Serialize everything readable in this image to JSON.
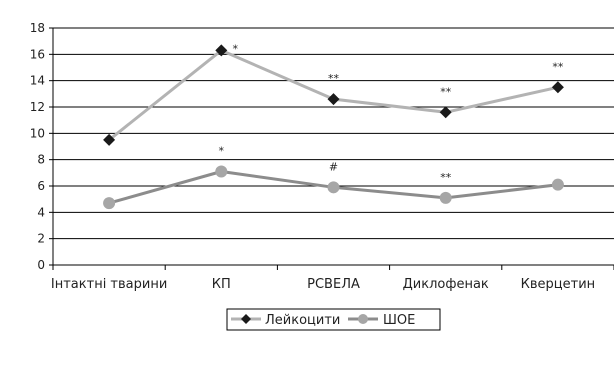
{
  "chart_data": {
    "type": "line",
    "categories": [
      "Інтактні тварини",
      "КП",
      "PCBEЛА",
      "Диклофенак",
      "Кверцетин"
    ],
    "ylim": [
      0,
      18
    ],
    "yticks": [
      0,
      2,
      4,
      6,
      8,
      10,
      12,
      14,
      16,
      18
    ],
    "grid": true,
    "legend_position": "bottom-center",
    "series": [
      {
        "name": "Лейкоцити",
        "marker": "diamond",
        "color": "#b3b3b3",
        "marker_color": "#1a1a1a",
        "values": [
          9.5,
          16.3,
          12.6,
          11.6,
          13.5
        ],
        "annotations": [
          "",
          "*",
          "**",
          "**",
          "**"
        ]
      },
      {
        "name": "ШОЕ",
        "marker": "circle",
        "color": "#8c8c8c",
        "marker_color": "#a6a6a6",
        "values": [
          4.7,
          7.1,
          5.9,
          5.1,
          6.1
        ],
        "annotations": [
          "",
          "*",
          "#",
          "**",
          ""
        ]
      }
    ]
  }
}
